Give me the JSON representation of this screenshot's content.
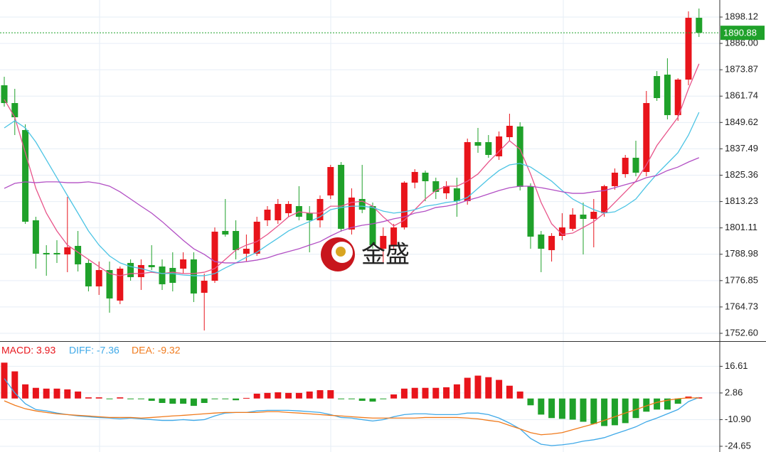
{
  "chart_data": [
    {
      "type": "candlestick",
      "open": [
        1866.73,
        1858.55,
        1846.13,
        1804.6,
        1789.56,
        1789.56,
        1788.9,
        1792.83,
        1784.98,
        1774.19,
        1781.71,
        1767.65,
        1784.98,
        1778.44,
        1784.0,
        1783.34,
        1782.69,
        1782.36,
        1786.61,
        1771.25,
        1776.8,
        1799.69,
        1799.69,
        1789.23,
        1789.23,
        1804.6,
        1804.6,
        1807.87,
        1811.14,
        1807.87,
        1804.6,
        1816.04,
        1830.11,
        1800.35,
        1814.41,
        1811.14,
        1791.52,
        1793.15,
        1801.33,
        1821.93,
        1826.51,
        1822.58,
        1817.03,
        1819.31,
        1813.43,
        1840.57,
        1840.57,
        1834.03,
        1842.86,
        1847.76,
        1820.3,
        1798.06,
        1790.87,
        1797.41,
        1800.68,
        1807.22,
        1805.25,
        1807.87,
        1820.3,
        1825.85,
        1833.38,
        1826.84,
        1870.98,
        1871.63,
        1853.0,
        1869.35,
        1897.79
      ],
      "high": [
        1870.65,
        1865.09,
        1848.74,
        1806.23,
        1793.15,
        1795.44,
        1815.39,
        1799.69,
        1786.61,
        1785.63,
        1785.63,
        1783.34,
        1786.61,
        1786.61,
        1793.15,
        1786.61,
        1789.88,
        1789.88,
        1789.88,
        1780.07,
        1801.33,
        1814.41,
        1804.6,
        1798.06,
        1806.23,
        1811.14,
        1814.41,
        1813.43,
        1820.3,
        1811.14,
        1816.04,
        1830.11,
        1831.41,
        1819.31,
        1830.11,
        1812.77,
        1801.33,
        1802.96,
        1822.58,
        1828.14,
        1827.49,
        1824.22,
        1822.58,
        1824.22,
        1842.2,
        1847.11,
        1843.84,
        1845.47,
        1853.65,
        1849.73,
        1821.6,
        1799.69,
        1798.71,
        1807.87,
        1810.16,
        1812.77,
        1814.41,
        1820.95,
        1828.47,
        1834.68,
        1841.22,
        1864.11,
        1873.27,
        1879.16,
        1870.0,
        1900.74,
        1902.05
      ],
      "low": [
        1856.92,
        1843.84,
        1802.96,
        1782.36,
        1779.09,
        1784.98,
        1780.73,
        1781.06,
        1771.9,
        1770.26,
        1762.09,
        1766.01,
        1776.8,
        1772.55,
        1781.71,
        1772.55,
        1771.9,
        1780.07,
        1766.99,
        1753.91,
        1775.82,
        1797.08,
        1786.61,
        1785.63,
        1788.25,
        1801.98,
        1802.96,
        1806.23,
        1804.6,
        1789.88,
        1801.33,
        1814.41,
        1799.37,
        1798.06,
        1807.87,
        1791.52,
        1784.98,
        1790.87,
        1800.35,
        1819.31,
        1813.43,
        1814.41,
        1814.41,
        1806.23,
        1811.79,
        1835.66,
        1833.38,
        1832.39,
        1841.22,
        1818.33,
        1791.52,
        1780.73,
        1785.63,
        1795.44,
        1799.69,
        1788.9,
        1792.17,
        1806.23,
        1818.66,
        1824.22,
        1824.87,
        1824.87,
        1859.54,
        1851.03,
        1850.38,
        1866.73,
        1888.97
      ],
      "close": [
        1858.55,
        1852.01,
        1803.95,
        1789.23,
        1788.9,
        1788.9,
        1792.17,
        1784.33,
        1774.19,
        1781.71,
        1768.63,
        1782.36,
        1778.44,
        1784.0,
        1783.02,
        1775.17,
        1775.82,
        1786.61,
        1770.92,
        1776.8,
        1799.37,
        1798.06,
        1790.87,
        1791.52,
        1803.95,
        1809.5,
        1812.12,
        1812.12,
        1806.23,
        1804.6,
        1814.41,
        1829.12,
        1800.68,
        1815.06,
        1809.5,
        1793.15,
        1797.41,
        1801.33,
        1821.93,
        1826.84,
        1822.58,
        1817.68,
        1820.3,
        1813.43,
        1840.57,
        1838.93,
        1834.68,
        1843.19,
        1848.09,
        1819.97,
        1797.08,
        1791.52,
        1797.41,
        1801.33,
        1807.22,
        1805.25,
        1808.52,
        1820.3,
        1826.51,
        1833.38,
        1826.51,
        1858.55,
        1860.84,
        1853.0,
        1869.35,
        1897.79,
        1890.88
      ],
      "up_color": "#e8141b",
      "down_color": "#1fa12a",
      "lines": [
        {
          "color": "#e8548a",
          "values": [
            1860.2,
            1852.0,
            1835.7,
            1819.3,
            1807.9,
            1799.7,
            1793.2,
            1789.9,
            1786.6,
            1783.3,
            1780.1,
            1779.1,
            1780.1,
            1780.1,
            1780.7,
            1780.1,
            1780.7,
            1780.1,
            1780.1,
            1780.7,
            1782.4,
            1786.6,
            1790.9,
            1793.2,
            1794.8,
            1798.1,
            1802.0,
            1806.2,
            1808.5,
            1807.9,
            1807.9,
            1811.1,
            1811.1,
            1812.8,
            1813.4,
            1811.1,
            1806.2,
            1802.0,
            1804.6,
            1809.5,
            1814.4,
            1818.3,
            1820.3,
            1820.3,
            1822.6,
            1825.9,
            1831.4,
            1836.3,
            1841.2,
            1837.3,
            1825.9,
            1812.8,
            1803.0,
            1798.1,
            1798.7,
            1801.3,
            1804.0,
            1807.9,
            1812.8,
            1817.7,
            1822.6,
            1830.1,
            1839.0,
            1845.5,
            1852.0,
            1865.1,
            1876.6
          ]
        },
        {
          "color": "#4cc4e4",
          "values": [
            1847.1,
            1850.4,
            1847.1,
            1840.6,
            1832.4,
            1824.2,
            1816.0,
            1807.9,
            1799.7,
            1793.2,
            1788.2,
            1785.0,
            1783.3,
            1782.4,
            1781.1,
            1780.1,
            1780.1,
            1779.4,
            1779.1,
            1779.1,
            1780.1,
            1782.7,
            1785.0,
            1787.6,
            1789.9,
            1793.2,
            1796.4,
            1799.7,
            1802.0,
            1804.0,
            1806.2,
            1809.5,
            1810.5,
            1811.1,
            1811.1,
            1810.5,
            1808.8,
            1807.9,
            1808.5,
            1809.5,
            1811.1,
            1811.8,
            1812.8,
            1813.4,
            1815.1,
            1819.3,
            1823.6,
            1827.5,
            1830.1,
            1830.8,
            1829.1,
            1825.9,
            1822.6,
            1818.3,
            1814.4,
            1811.8,
            1809.5,
            1807.9,
            1808.5,
            1811.1,
            1814.4,
            1820.3,
            1825.9,
            1830.8,
            1835.7,
            1843.8,
            1854.3
          ]
        },
        {
          "color": "#b24fc4",
          "values": [
            1819.3,
            1821.6,
            1822.3,
            1821.9,
            1822.3,
            1822.3,
            1821.9,
            1821.9,
            1822.3,
            1821.6,
            1820.3,
            1817.7,
            1814.4,
            1811.1,
            1807.9,
            1804.0,
            1799.7,
            1795.4,
            1791.5,
            1788.9,
            1785.6,
            1785.0,
            1785.0,
            1785.6,
            1786.3,
            1787.3,
            1788.9,
            1790.2,
            1791.5,
            1793.2,
            1794.8,
            1797.4,
            1799.7,
            1801.3,
            1802.3,
            1803.0,
            1804.0,
            1805.3,
            1806.2,
            1807.9,
            1808.8,
            1810.5,
            1811.1,
            1812.1,
            1813.8,
            1815.1,
            1816.7,
            1818.3,
            1819.6,
            1820.3,
            1820.3,
            1819.6,
            1818.7,
            1817.7,
            1817.0,
            1817.0,
            1817.7,
            1818.3,
            1819.6,
            1821.0,
            1822.3,
            1824.2,
            1825.2,
            1827.5,
            1829.1,
            1831.4,
            1833.4
          ]
        }
      ],
      "ylim": [
        1749.0,
        1905.97
      ],
      "yticks": [
        {
          "value": 1752.6,
          "label": "1752.60"
        },
        1764.73,
        1776.85,
        1788.98,
        1801.11,
        1813.23,
        1825.36,
        1837.49,
        1849.62,
        1861.74,
        1873.87,
        {
          "value": 1886,
          "label": "1886.00"
        },
        1898.12
      ],
      "grid": true,
      "last_price": 1890.88,
      "last_price_color": "#1fa12a",
      "watermark": "金盛"
    },
    {
      "type": "macd",
      "headers": [
        {
          "text": "MACD: 3.93",
          "color": "#e8141b"
        },
        {
          "text": "DIFF: -7.36",
          "color": "#3fa9e8"
        },
        {
          "text": "DEA: -9.32",
          "color": "#f07a1c"
        }
      ],
      "values": [
        18.5,
        14.0,
        7.3,
        5.5,
        5.1,
        5.1,
        4.7,
        3.6,
        0.6,
        0.6,
        -0.1,
        0.6,
        -0.1,
        -0.1,
        -1.2,
        -2.3,
        -2.7,
        -2.7,
        -3.8,
        -2.3,
        -0.1,
        -0.1,
        -0.9,
        0.3,
        2.5,
        2.9,
        3.2,
        2.9,
        2.9,
        3.6,
        4.3,
        4.3,
        -0.1,
        -0.1,
        -1.2,
        -1.6,
        -0.1,
        2.1,
        5.1,
        5.5,
        5.5,
        5.5,
        5.8,
        7.3,
        10.7,
        11.8,
        11.0,
        9.6,
        6.6,
        3.6,
        -3.5,
        -8.3,
        -10.1,
        -10.5,
        -10.9,
        -12.0,
        -13.1,
        -14.2,
        -13.8,
        -12.7,
        -10.1,
        -6.8,
        -5.7,
        -5.7,
        -2.7,
        1.0,
        0.6
      ],
      "up_color": "#e8141b",
      "down_color": "#1fa12a",
      "lines": [
        {
          "color": "#3fa9e8",
          "values": [
            10.3,
            2.9,
            -2.7,
            -5.7,
            -6.4,
            -7.5,
            -8.3,
            -9.0,
            -9.4,
            -9.8,
            -10.1,
            -10.5,
            -10.1,
            -10.5,
            -10.9,
            -11.3,
            -11.3,
            -10.9,
            -11.3,
            -10.9,
            -9.0,
            -7.5,
            -7.2,
            -7.2,
            -6.4,
            -6.1,
            -6.1,
            -6.1,
            -6.4,
            -6.8,
            -7.2,
            -8.3,
            -9.8,
            -10.1,
            -10.9,
            -11.6,
            -10.9,
            -9.4,
            -8.3,
            -7.9,
            -7.9,
            -8.3,
            -8.3,
            -8.3,
            -7.5,
            -7.5,
            -8.3,
            -10.1,
            -12.7,
            -15.7,
            -20.6,
            -23.6,
            -24.3,
            -23.9,
            -23.2,
            -22.0,
            -21.3,
            -20.2,
            -18.3,
            -16.5,
            -14.6,
            -12.0,
            -10.1,
            -7.9,
            -5.7,
            -1.6,
            0.6
          ]
        },
        {
          "color": "#f07a1c",
          "values": [
            -1.2,
            -3.5,
            -5.3,
            -6.4,
            -7.2,
            -7.9,
            -8.3,
            -8.7,
            -9.0,
            -9.4,
            -9.8,
            -9.8,
            -9.8,
            -10.1,
            -9.8,
            -9.4,
            -9.0,
            -8.7,
            -8.3,
            -7.9,
            -7.5,
            -7.2,
            -7.2,
            -7.2,
            -7.2,
            -6.8,
            -6.8,
            -7.2,
            -7.5,
            -7.9,
            -8.3,
            -8.7,
            -9.0,
            -9.4,
            -9.8,
            -10.1,
            -10.1,
            -10.1,
            -10.1,
            -10.1,
            -9.8,
            -9.8,
            -9.8,
            -9.8,
            -10.1,
            -10.5,
            -11.3,
            -12.0,
            -13.9,
            -15.7,
            -17.6,
            -18.7,
            -18.3,
            -17.6,
            -16.1,
            -14.6,
            -13.1,
            -11.3,
            -9.4,
            -7.5,
            -5.7,
            -3.8,
            -2.0,
            -0.9,
            -0.1,
            0.3,
            0.3
          ]
        }
      ],
      "ylim": [
        -27.6,
        29.6
      ],
      "yticks": [
        16.61,
        2.86,
        {
          "value": -10.9,
          "label": "-10.90"
        },
        -24.65
      ],
      "grid": true
    }
  ]
}
